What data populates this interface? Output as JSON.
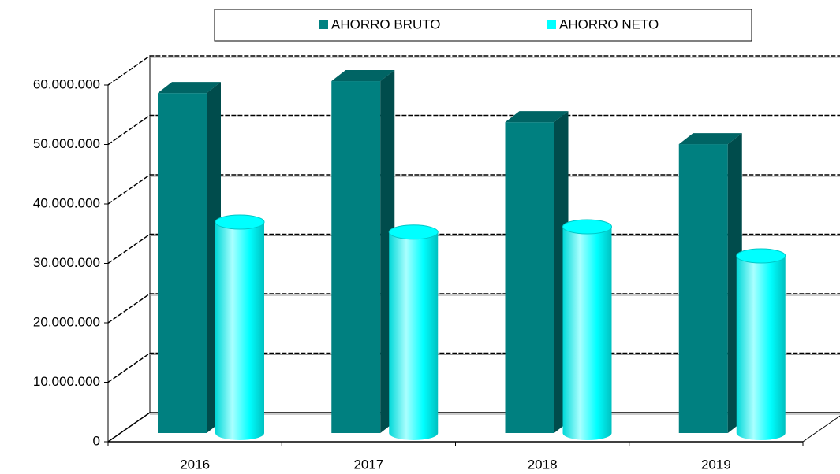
{
  "chart_data": {
    "type": "bar3d",
    "categories": [
      "2016",
      "2017",
      "2018",
      "2019"
    ],
    "series": [
      {
        "name": "AHORRO BRUTO",
        "color": "#008080",
        "shape": "box",
        "values": [
          57200000,
          59200000,
          52300000,
          48600000
        ]
      },
      {
        "name": "AHORRO NETO",
        "color": "#00ffff",
        "shape": "cylinder",
        "values": [
          35500000,
          33800000,
          34700000,
          29800000
        ]
      }
    ],
    "ylim": [
      0,
      60000000
    ],
    "yticks": [
      0,
      {
        "value": 10000000,
        "label": "10.000.000"
      },
      {
        "value": 20000000,
        "label": "20.000.000"
      },
      {
        "value": 30000000,
        "label": "30.000.000"
      },
      {
        "value": 40000000,
        "label": "40.000.000"
      },
      {
        "value": 50000000,
        "label": "50.000.000"
      },
      {
        "value": 60000000,
        "label": "60.000.000"
      }
    ],
    "grid": true,
    "legend": "top"
  }
}
